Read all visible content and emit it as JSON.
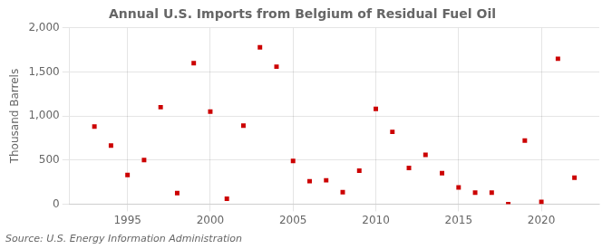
{
  "chart_data": {
    "type": "scatter",
    "title": "Annual U.S. Imports from Belgium of Residual Fuel Oil",
    "ylabel": "Thousand Barrels",
    "source": "Source: U.S. Energy Information Administration",
    "x": [
      1993,
      1994,
      1995,
      1996,
      1997,
      1998,
      1999,
      2000,
      2001,
      2002,
      2003,
      2004,
      2005,
      2006,
      2007,
      2008,
      2009,
      2010,
      2011,
      2012,
      2013,
      2014,
      2015,
      2016,
      2017,
      2018,
      2019,
      2020,
      2021,
      2022
    ],
    "values": [
      880,
      665,
      330,
      500,
      1100,
      125,
      1600,
      1050,
      60,
      890,
      1780,
      1560,
      490,
      260,
      270,
      135,
      380,
      1080,
      820,
      410,
      560,
      350,
      190,
      130,
      130,
      0,
      720,
      25,
      1650,
      300
    ],
    "color": "#cc0000",
    "marker": "square",
    "xlim": [
      1991.5,
      2023.5
    ],
    "xticks": [
      1995,
      2000,
      2005,
      2010,
      2015,
      2020
    ],
    "ylim": [
      0,
      2000
    ],
    "yticks": [
      0,
      500,
      {
        "value": 1000,
        "label": "1,000"
      },
      {
        "value": 1500,
        "label": "1,500"
      },
      {
        "value": 2000,
        "label": "2,000"
      }
    ],
    "grid": true
  }
}
